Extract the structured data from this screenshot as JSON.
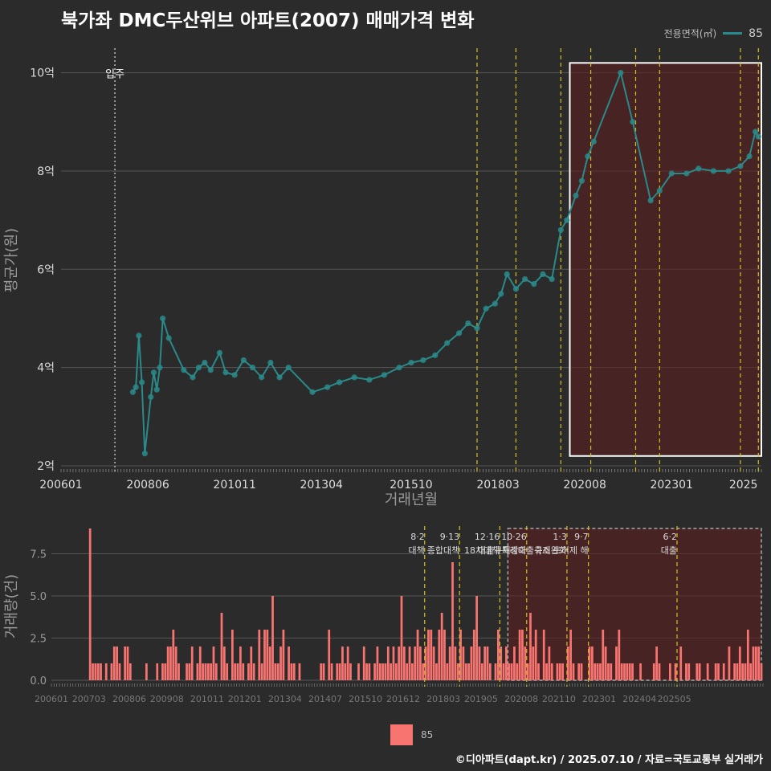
{
  "title": "북가좌 DMC두산위브 아파트(2007) 매매가격 변화",
  "legend": {
    "title": "전용면적(㎡)",
    "series_label": "85",
    "bar_label": "85"
  },
  "credit": "©디아파트(dapt.kr) / 2025.07.10 / 자료=국토교통부 실거래가",
  "colors": {
    "background": "#2b2b2b",
    "line": "#2a8a8a",
    "bar": "#f87470",
    "policy": "#d6c21b",
    "highlight": "#5a1e1e"
  },
  "chart_data": [
    {
      "type": "line",
      "title": "북가좌 DMC두산위브 아파트(2007) 매매가격 변화",
      "xlabel": "거래년월",
      "ylabel": "평균가(원)",
      "x_range": [
        "2006-01",
        "2025-07"
      ],
      "ylim": [
        2,
        10.5
      ],
      "y_ticks": [
        2,
        4,
        6,
        8,
        10
      ],
      "y_tick_labels": [
        "2억",
        "4억",
        "6억",
        "8억",
        "10억"
      ],
      "x_tick_labels": [
        "200601",
        "200806",
        "201011",
        "201304",
        "201510",
        "201803",
        "202008",
        "202301",
        "2025"
      ],
      "annotation": {
        "date": "2007-07",
        "label": "입주"
      },
      "policy_lines": [
        "2017-08",
        "2018-09",
        "2019-12",
        "2020-10",
        "2022-01",
        "2022-09",
        "2024-12",
        "2025-06"
      ],
      "highlight_region": {
        "from": "2020-03",
        "to": "2025-07",
        "ymin": 2.2,
        "ymax": 10.2
      },
      "series": [
        {
          "name": "85",
          "points": [
            [
              "2008-01",
              3.5
            ],
            [
              "2008-02",
              3.6
            ],
            [
              "2008-03",
              4.65
            ],
            [
              "2008-04",
              3.7
            ],
            [
              "2008-05",
              2.25
            ],
            [
              "2008-07",
              3.4
            ],
            [
              "2008-08",
              3.9
            ],
            [
              "2008-09",
              3.55
            ],
            [
              "2008-10",
              4.0
            ],
            [
              "2008-11",
              5.0
            ],
            [
              "2009-01",
              4.6
            ],
            [
              "2009-06",
              3.95
            ],
            [
              "2009-09",
              3.8
            ],
            [
              "2009-11",
              4.0
            ],
            [
              "2010-01",
              4.1
            ],
            [
              "2010-03",
              3.95
            ],
            [
              "2010-06",
              4.3
            ],
            [
              "2010-08",
              3.9
            ],
            [
              "2010-11",
              3.85
            ],
            [
              "2011-02",
              4.15
            ],
            [
              "2011-05",
              4.0
            ],
            [
              "2011-08",
              3.8
            ],
            [
              "2011-11",
              4.1
            ],
            [
              "2012-02",
              3.8
            ],
            [
              "2012-05",
              4.0
            ],
            [
              "2013-01",
              3.5
            ],
            [
              "2013-06",
              3.6
            ],
            [
              "2013-10",
              3.7
            ],
            [
              "2014-03",
              3.8
            ],
            [
              "2014-08",
              3.75
            ],
            [
              "2015-01",
              3.85
            ],
            [
              "2015-06",
              4.0
            ],
            [
              "2015-10",
              4.1
            ],
            [
              "2016-02",
              4.15
            ],
            [
              "2016-06",
              4.25
            ],
            [
              "2016-10",
              4.5
            ],
            [
              "2017-02",
              4.7
            ],
            [
              "2017-05",
              4.9
            ],
            [
              "2017-08",
              4.8
            ],
            [
              "2017-11",
              5.2
            ],
            [
              "2018-02",
              5.3
            ],
            [
              "2018-04",
              5.5
            ],
            [
              "2018-06",
              5.9
            ],
            [
              "2018-09",
              5.6
            ],
            [
              "2018-12",
              5.8
            ],
            [
              "2019-03",
              5.7
            ],
            [
              "2019-06",
              5.9
            ],
            [
              "2019-09",
              5.8
            ],
            [
              "2019-12",
              6.8
            ],
            [
              "2020-02",
              7.0
            ],
            [
              "2020-05",
              7.5
            ],
            [
              "2020-07",
              7.8
            ],
            [
              "2020-09",
              8.3
            ],
            [
              "2020-11",
              8.6
            ],
            [
              "2021-08",
              10.0
            ],
            [
              "2021-12",
              9.0
            ],
            [
              "2022-06",
              7.4
            ],
            [
              "2022-09",
              7.6
            ],
            [
              "2023-01",
              7.95
            ],
            [
              "2023-06",
              7.95
            ],
            [
              "2023-10",
              8.05
            ],
            [
              "2024-03",
              8.0
            ],
            [
              "2024-08",
              8.0
            ],
            [
              "2024-12",
              8.1
            ],
            [
              "2025-03",
              8.3
            ],
            [
              "2025-05",
              8.8
            ],
            [
              "2025-06",
              8.7
            ]
          ]
        }
      ]
    },
    {
      "type": "bar",
      "xlabel": "",
      "ylabel": "거래량(건)",
      "ylim": [
        0,
        9
      ],
      "y_ticks": [
        0,
        2.5,
        5,
        7.5
      ],
      "y_tick_labels": [
        "0.0",
        "2.5",
        "5.0",
        "7.5"
      ],
      "x_tick_labels": [
        "200601",
        "200703",
        "200806",
        "200908",
        "201011",
        "201201",
        "201304",
        "201407",
        "201510",
        "201612",
        "201803",
        "201905",
        "202008",
        "202110",
        "202301",
        "202404",
        "202505"
      ],
      "policy_annotations": [
        {
          "date": "2017-08",
          "label": "8·2 대책"
        },
        {
          "date": "2018-09",
          "label": "9·13 종합대책"
        },
        {
          "date": "2019-12",
          "label": "12·16 18차대책"
        },
        {
          "date": "2020-10",
          "label": "10·26 대출규제강화"
        },
        {
          "date": "2022-01",
          "label": "1·3 규제완화"
        },
        {
          "date": "2022-09",
          "label": "9·7 특례대출축소 토허제 해"
        },
        {
          "date": "2025-06",
          "label": "6·2 대출"
        }
      ],
      "volumes": [
        0,
        0,
        0,
        0,
        0,
        0,
        0,
        0,
        0,
        0,
        0,
        0,
        0,
        0,
        9,
        1,
        1,
        1,
        1,
        0,
        1,
        0,
        1,
        2,
        2,
        1,
        0,
        2,
        2,
        1,
        0,
        0,
        0,
        0,
        0,
        1,
        0,
        0,
        0,
        1,
        0,
        1,
        1,
        2,
        2,
        3,
        2,
        1,
        0,
        0,
        1,
        1,
        2,
        0,
        1,
        2,
        1,
        1,
        1,
        1,
        2,
        1,
        0,
        4,
        2,
        1,
        0,
        3,
        1,
        1,
        2,
        1,
        0,
        1,
        2,
        1,
        0,
        3,
        1,
        3,
        3,
        2,
        5,
        1,
        1,
        2,
        3,
        0,
        2,
        1,
        1,
        0,
        1,
        0,
        0,
        0,
        0,
        0,
        0,
        0,
        1,
        1,
        0,
        3,
        1,
        0,
        1,
        1,
        2,
        1,
        2,
        1,
        0,
        0,
        1,
        0,
        2,
        1,
        1,
        0,
        1,
        2,
        1,
        1,
        1,
        2,
        1,
        2,
        1,
        2,
        5,
        2,
        1,
        2,
        1,
        2,
        3,
        2,
        1,
        2,
        3,
        3,
        2,
        1,
        3,
        4,
        3,
        1,
        2,
        7,
        2,
        1,
        3,
        2,
        1,
        1,
        2,
        3,
        5,
        2,
        1,
        2,
        2,
        1,
        0,
        1,
        3,
        2,
        1,
        2,
        1,
        1,
        2,
        1,
        3,
        3,
        2,
        1,
        4,
        2,
        3,
        1,
        0,
        3,
        1,
        2,
        1,
        0,
        1,
        1,
        1,
        0,
        2,
        3,
        1,
        0,
        1,
        1,
        0,
        0,
        2,
        2,
        1,
        1,
        1,
        3,
        2,
        1,
        1,
        0,
        2,
        3,
        1,
        1,
        1,
        1,
        1,
        0,
        0,
        1,
        0,
        0,
        0,
        0,
        1,
        2,
        1,
        0,
        0,
        0,
        1,
        0,
        1,
        0,
        2,
        0,
        1,
        1,
        0,
        0,
        1,
        1,
        0,
        0,
        1,
        0,
        0,
        1,
        1,
        0,
        1,
        0,
        2,
        0,
        1,
        1,
        2,
        1,
        1,
        3,
        1,
        2,
        2,
        2,
        1
      ]
    }
  ]
}
